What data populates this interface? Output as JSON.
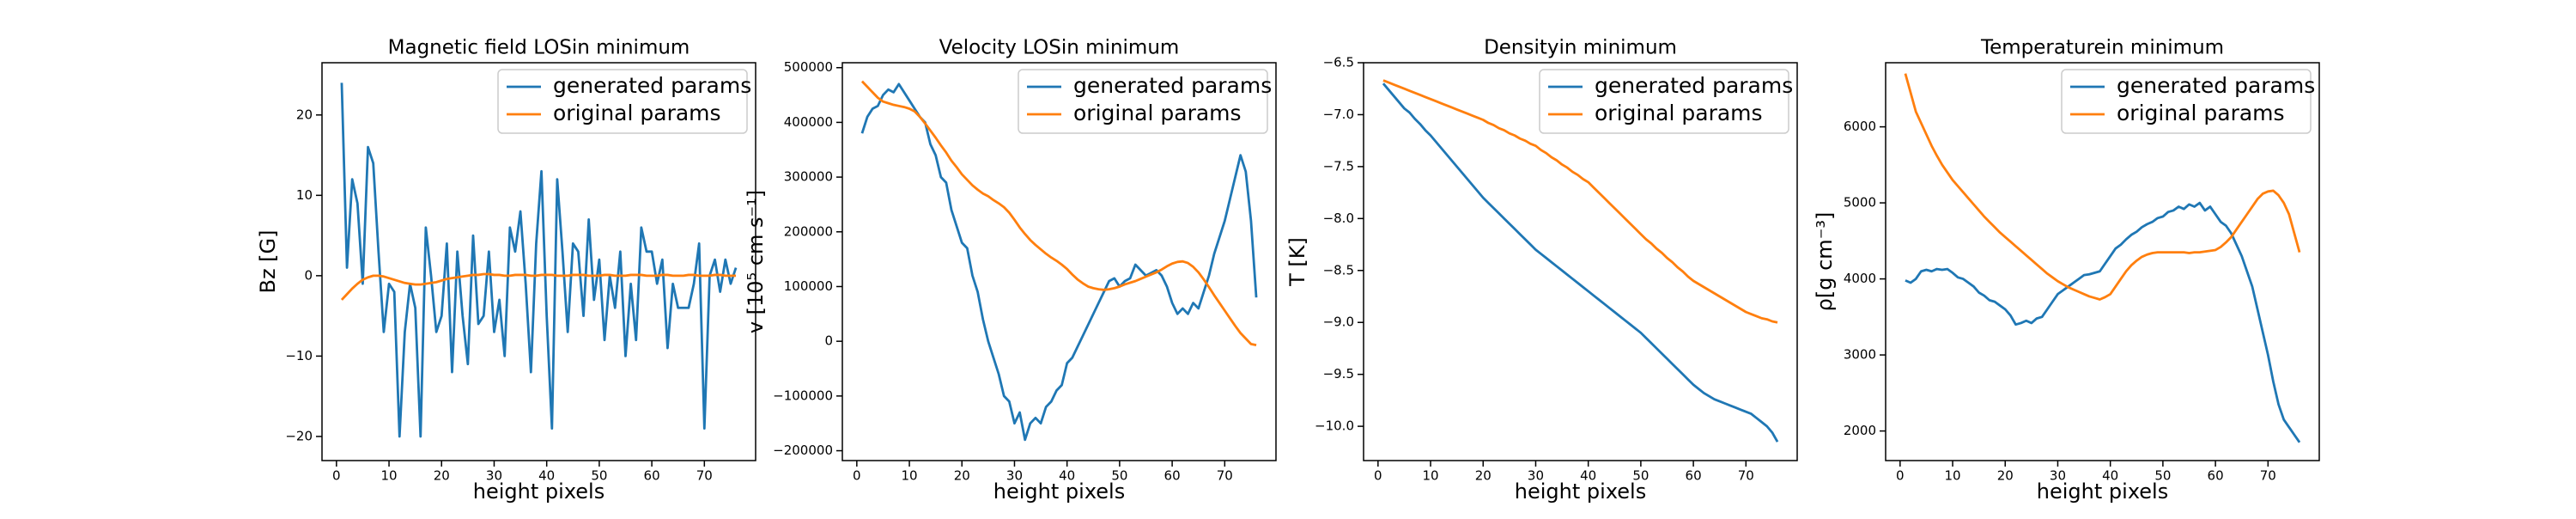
{
  "chart_data": [
    {
      "type": "line",
      "title": "Magnetic field LOSin minimum",
      "xlabel": "height pixels",
      "ylabel": "Bz [G]",
      "x": [
        1,
        2,
        3,
        4,
        5,
        6,
        7,
        8,
        9,
        10,
        11,
        12,
        13,
        14,
        15,
        16,
        17,
        18,
        19,
        20,
        21,
        22,
        23,
        24,
        25,
        26,
        27,
        28,
        29,
        30,
        31,
        32,
        33,
        34,
        35,
        36,
        37,
        38,
        39,
        40,
        41,
        42,
        43,
        44,
        45,
        46,
        47,
        48,
        49,
        50,
        51,
        52,
        53,
        54,
        55,
        56,
        57,
        58,
        59,
        60,
        61,
        62,
        63,
        64,
        65,
        66,
        67,
        68,
        69,
        70,
        71,
        72,
        73,
        74,
        75,
        76
      ],
      "series": [
        {
          "name": "generated params",
          "color": "#1f77b4",
          "values": [
            24,
            1,
            12,
            9,
            -1,
            16,
            14,
            3,
            -7,
            -1,
            -2,
            -20,
            -7,
            -1,
            -4,
            -20,
            6,
            0,
            -7,
            -5,
            4,
            -12,
            3,
            -5,
            -11,
            5,
            -6,
            -5,
            3,
            -7,
            -3,
            -10,
            6,
            3,
            8,
            -1,
            -12,
            4,
            13,
            -5,
            -19,
            12,
            3,
            -7,
            4,
            3,
            -5,
            7,
            -3,
            2,
            -8,
            0,
            -4,
            3,
            -10,
            -1,
            -8,
            6,
            3,
            3,
            -1,
            2,
            -9,
            -1,
            -4,
            -4,
            -4,
            -1,
            4,
            -19,
            0,
            2,
            -2,
            2,
            -1,
            1
          ]
        },
        {
          "name": "original params",
          "color": "#ff7f0e",
          "values": [
            -3,
            -2.3,
            -1.6,
            -1,
            -0.5,
            -0.2,
            0,
            0,
            -0.1,
            -0.3,
            -0.5,
            -0.7,
            -0.9,
            -1,
            -1.1,
            -1.1,
            -1,
            -0.9,
            -0.8,
            -0.6,
            -0.4,
            -0.3,
            -0.2,
            -0.1,
            0,
            0.1,
            0.1,
            0.2,
            0.2,
            0.1,
            0.1,
            0,
            0,
            0.1,
            0.1,
            0.1,
            0,
            0,
            0.1,
            0.1,
            0.1,
            0,
            0,
            0,
            0.1,
            0.1,
            0.1,
            0,
            0,
            0,
            0.1,
            0.1,
            0,
            0,
            0,
            0.1,
            0.1,
            0.1,
            0,
            0,
            0,
            0.1,
            0.1,
            0,
            0,
            0,
            0.1,
            0.1,
            0,
            0,
            0,
            0.1,
            0.1,
            0,
            0,
            0
          ]
        }
      ],
      "xlim": [
        -2.75,
        79.75
      ],
      "xticks": [
        0,
        10,
        20,
        30,
        40,
        50,
        60,
        70
      ],
      "ylim": [
        -23,
        26.5
      ],
      "yticks": [
        {
          "value": -20,
          "label": "−20"
        },
        {
          "value": -10,
          "label": "−10"
        },
        0,
        10,
        20
      ],
      "legend": "upper right"
    },
    {
      "type": "line",
      "title": "Velocity LOSin minimum",
      "xlabel": "height pixels",
      "ylabel": "v [10⁵ cm s⁻¹]",
      "x": [
        1,
        2,
        3,
        4,
        5,
        6,
        7,
        8,
        9,
        10,
        11,
        12,
        13,
        14,
        15,
        16,
        17,
        18,
        19,
        20,
        21,
        22,
        23,
        24,
        25,
        26,
        27,
        28,
        29,
        30,
        31,
        32,
        33,
        34,
        35,
        36,
        37,
        38,
        39,
        40,
        41,
        42,
        43,
        44,
        45,
        46,
        47,
        48,
        49,
        50,
        51,
        52,
        53,
        54,
        55,
        56,
        57,
        58,
        59,
        60,
        61,
        62,
        63,
        64,
        65,
        66,
        67,
        68,
        69,
        70,
        71,
        72,
        73,
        74,
        75,
        76
      ],
      "series": [
        {
          "name": "generated params",
          "color": "#1f77b4",
          "values": [
            380000,
            410000,
            425000,
            430000,
            450000,
            460000,
            455000,
            470000,
            455000,
            440000,
            425000,
            410000,
            400000,
            360000,
            340000,
            300000,
            290000,
            240000,
            210000,
            180000,
            170000,
            120000,
            90000,
            40000,
            0,
            -30000,
            -60000,
            -100000,
            -110000,
            -150000,
            -130000,
            -180000,
            -150000,
            -140000,
            -150000,
            -120000,
            -110000,
            -90000,
            -80000,
            -40000,
            -30000,
            -10000,
            10000,
            30000,
            50000,
            70000,
            90000,
            110000,
            115000,
            100000,
            110000,
            115000,
            140000,
            130000,
            120000,
            125000,
            130000,
            120000,
            100000,
            70000,
            50000,
            60000,
            50000,
            70000,
            60000,
            90000,
            120000,
            160000,
            190000,
            220000,
            260000,
            300000,
            340000,
            310000,
            220000,
            80000
          ]
        },
        {
          "name": "original params",
          "color": "#ff7f0e",
          "values": [
            475000,
            465000,
            455000,
            445000,
            438000,
            435000,
            432000,
            430000,
            428000,
            425000,
            420000,
            410000,
            398000,
            385000,
            372000,
            358000,
            345000,
            330000,
            318000,
            305000,
            295000,
            285000,
            277000,
            270000,
            265000,
            258000,
            252000,
            245000,
            235000,
            222000,
            208000,
            196000,
            185000,
            176000,
            168000,
            160000,
            153000,
            147000,
            140000,
            132000,
            122000,
            113000,
            106000,
            100000,
            97000,
            95000,
            94000,
            95000,
            97000,
            100000,
            104000,
            107000,
            110000,
            114000,
            118000,
            122000,
            126000,
            131000,
            137000,
            142000,
            145000,
            146000,
            143000,
            136000,
            126000,
            113000,
            99000,
            84000,
            70000,
            56000,
            42000,
            28000,
            15000,
            5000,
            -5000,
            -7000
          ]
        }
      ],
      "xlim": [
        -2.75,
        79.75
      ],
      "xticks": [
        0,
        10,
        20,
        30,
        40,
        50,
        60,
        70
      ],
      "ylim": [
        -218000,
        509000
      ],
      "yticks": [
        {
          "value": -200000,
          "label": "−200000"
        },
        {
          "value": -100000,
          "label": "−100000"
        },
        0,
        100000,
        200000,
        300000,
        400000,
        500000
      ],
      "legend": "upper right"
    },
    {
      "type": "line",
      "title": "Densityin minimum",
      "xlabel": "height pixels",
      "ylabel": "T [K]",
      "x": [
        1,
        2,
        3,
        4,
        5,
        6,
        7,
        8,
        9,
        10,
        11,
        12,
        13,
        14,
        15,
        16,
        17,
        18,
        19,
        20,
        21,
        22,
        23,
        24,
        25,
        26,
        27,
        28,
        29,
        30,
        31,
        32,
        33,
        34,
        35,
        36,
        37,
        38,
        39,
        40,
        41,
        42,
        43,
        44,
        45,
        46,
        47,
        48,
        49,
        50,
        51,
        52,
        53,
        54,
        55,
        56,
        57,
        58,
        59,
        60,
        61,
        62,
        63,
        64,
        65,
        66,
        67,
        68,
        69,
        70,
        71,
        72,
        73,
        74,
        75,
        76
      ],
      "series": [
        {
          "name": "generated params",
          "color": "#1f77b4",
          "values": [
            -6.7,
            -6.76,
            -6.82,
            -6.88,
            -6.94,
            -6.98,
            -7.04,
            -7.09,
            -7.15,
            -7.2,
            -7.26,
            -7.32,
            -7.38,
            -7.44,
            -7.5,
            -7.56,
            -7.62,
            -7.68,
            -7.74,
            -7.8,
            -7.85,
            -7.9,
            -7.95,
            -8.0,
            -8.05,
            -8.1,
            -8.15,
            -8.2,
            -8.25,
            -8.3,
            -8.34,
            -8.38,
            -8.42,
            -8.46,
            -8.5,
            -8.54,
            -8.58,
            -8.62,
            -8.66,
            -8.7,
            -8.74,
            -8.78,
            -8.82,
            -8.86,
            -8.9,
            -8.94,
            -8.98,
            -9.02,
            -9.06,
            -9.1,
            -9.15,
            -9.2,
            -9.25,
            -9.3,
            -9.35,
            -9.4,
            -9.45,
            -9.5,
            -9.55,
            -9.6,
            -9.64,
            -9.68,
            -9.71,
            -9.74,
            -9.76,
            -9.78,
            -9.8,
            -9.82,
            -9.84,
            -9.86,
            -9.88,
            -9.92,
            -9.96,
            -10.0,
            -10.06,
            -10.15
          ]
        },
        {
          "name": "original params",
          "color": "#ff7f0e",
          "values": [
            -6.67,
            -6.69,
            -6.71,
            -6.73,
            -6.75,
            -6.77,
            -6.79,
            -6.81,
            -6.83,
            -6.85,
            -6.87,
            -6.89,
            -6.91,
            -6.93,
            -6.95,
            -6.97,
            -6.99,
            -7.01,
            -7.03,
            -7.05,
            -7.08,
            -7.1,
            -7.13,
            -7.15,
            -7.18,
            -7.2,
            -7.23,
            -7.25,
            -7.28,
            -7.3,
            -7.34,
            -7.37,
            -7.41,
            -7.44,
            -7.48,
            -7.51,
            -7.55,
            -7.58,
            -7.62,
            -7.65,
            -7.7,
            -7.75,
            -7.8,
            -7.85,
            -7.9,
            -7.95,
            -8.0,
            -8.05,
            -8.1,
            -8.15,
            -8.2,
            -8.24,
            -8.29,
            -8.33,
            -8.38,
            -8.42,
            -8.47,
            -8.51,
            -8.56,
            -8.6,
            -8.63,
            -8.66,
            -8.69,
            -8.72,
            -8.75,
            -8.78,
            -8.81,
            -8.84,
            -8.87,
            -8.9,
            -8.92,
            -8.94,
            -8.96,
            -8.97,
            -8.99,
            -9.0
          ]
        }
      ],
      "xlim": [
        -2.75,
        79.75
      ],
      "xticks": [
        0,
        10,
        20,
        30,
        40,
        50,
        60,
        70
      ],
      "ylim": [
        -10.33,
        -6.5
      ],
      "yticks": [
        {
          "value": -10,
          "label": "−10.0"
        },
        {
          "value": -9.5,
          "label": "−9.5"
        },
        {
          "value": -9,
          "label": "−9.0"
        },
        {
          "value": -8.5,
          "label": "−8.5"
        },
        {
          "value": -8,
          "label": "−8.0"
        },
        {
          "value": -7.5,
          "label": "−7.5"
        },
        {
          "value": -7,
          "label": "−7.0"
        },
        {
          "value": -6.5,
          "label": "−6.5"
        }
      ],
      "legend": "upper right"
    },
    {
      "type": "line",
      "title": "Temperaturein minimum",
      "xlabel": "height pixels",
      "ylabel": "ρ[g cm⁻³]",
      "x": [
        1,
        2,
        3,
        4,
        5,
        6,
        7,
        8,
        9,
        10,
        11,
        12,
        13,
        14,
        15,
        16,
        17,
        18,
        19,
        20,
        21,
        22,
        23,
        24,
        25,
        26,
        27,
        28,
        29,
        30,
        31,
        32,
        33,
        34,
        35,
        36,
        37,
        38,
        39,
        40,
        41,
        42,
        43,
        44,
        45,
        46,
        47,
        48,
        49,
        50,
        51,
        52,
        53,
        54,
        55,
        56,
        57,
        58,
        59,
        60,
        61,
        62,
        63,
        64,
        65,
        66,
        67,
        68,
        69,
        70,
        71,
        72,
        73,
        74,
        75,
        76
      ],
      "series": [
        {
          "name": "generated params",
          "color": "#1f77b4",
          "values": [
            3980,
            3950,
            4000,
            4100,
            4120,
            4100,
            4130,
            4120,
            4130,
            4080,
            4020,
            4000,
            3950,
            3900,
            3820,
            3780,
            3720,
            3700,
            3650,
            3600,
            3520,
            3400,
            3420,
            3450,
            3420,
            3480,
            3500,
            3600,
            3700,
            3800,
            3850,
            3900,
            3950,
            4000,
            4050,
            4060,
            4080,
            4100,
            4200,
            4300,
            4400,
            4450,
            4520,
            4580,
            4620,
            4680,
            4720,
            4750,
            4800,
            4820,
            4880,
            4900,
            4950,
            4920,
            4980,
            4950,
            5000,
            4900,
            4950,
            4850,
            4750,
            4700,
            4600,
            4450,
            4300,
            4100,
            3900,
            3600,
            3300,
            3000,
            2650,
            2350,
            2150,
            2050,
            1950,
            1850
          ]
        },
        {
          "name": "original params",
          "color": "#ff7f0e",
          "values": [
            6700,
            6450,
            6200,
            6050,
            5900,
            5750,
            5620,
            5500,
            5400,
            5300,
            5220,
            5140,
            5060,
            4980,
            4900,
            4820,
            4750,
            4680,
            4610,
            4550,
            4490,
            4430,
            4370,
            4310,
            4250,
            4190,
            4130,
            4070,
            4020,
            3970,
            3930,
            3890,
            3860,
            3830,
            3800,
            3770,
            3750,
            3730,
            3760,
            3800,
            3900,
            4000,
            4100,
            4180,
            4240,
            4290,
            4320,
            4340,
            4350,
            4350,
            4350,
            4350,
            4350,
            4350,
            4340,
            4350,
            4350,
            4360,
            4370,
            4380,
            4420,
            4480,
            4550,
            4650,
            4750,
            4850,
            4950,
            5050,
            5120,
            5150,
            5160,
            5100,
            5000,
            4850,
            4600,
            4350
          ]
        }
      ],
      "xlim": [
        -2.75,
        79.75
      ],
      "xticks": [
        0,
        10,
        20,
        30,
        40,
        50,
        60,
        70
      ],
      "ylim": [
        1611,
        6843
      ],
      "yticks": [
        2000,
        3000,
        4000,
        5000,
        6000
      ],
      "legend": "upper right"
    }
  ]
}
